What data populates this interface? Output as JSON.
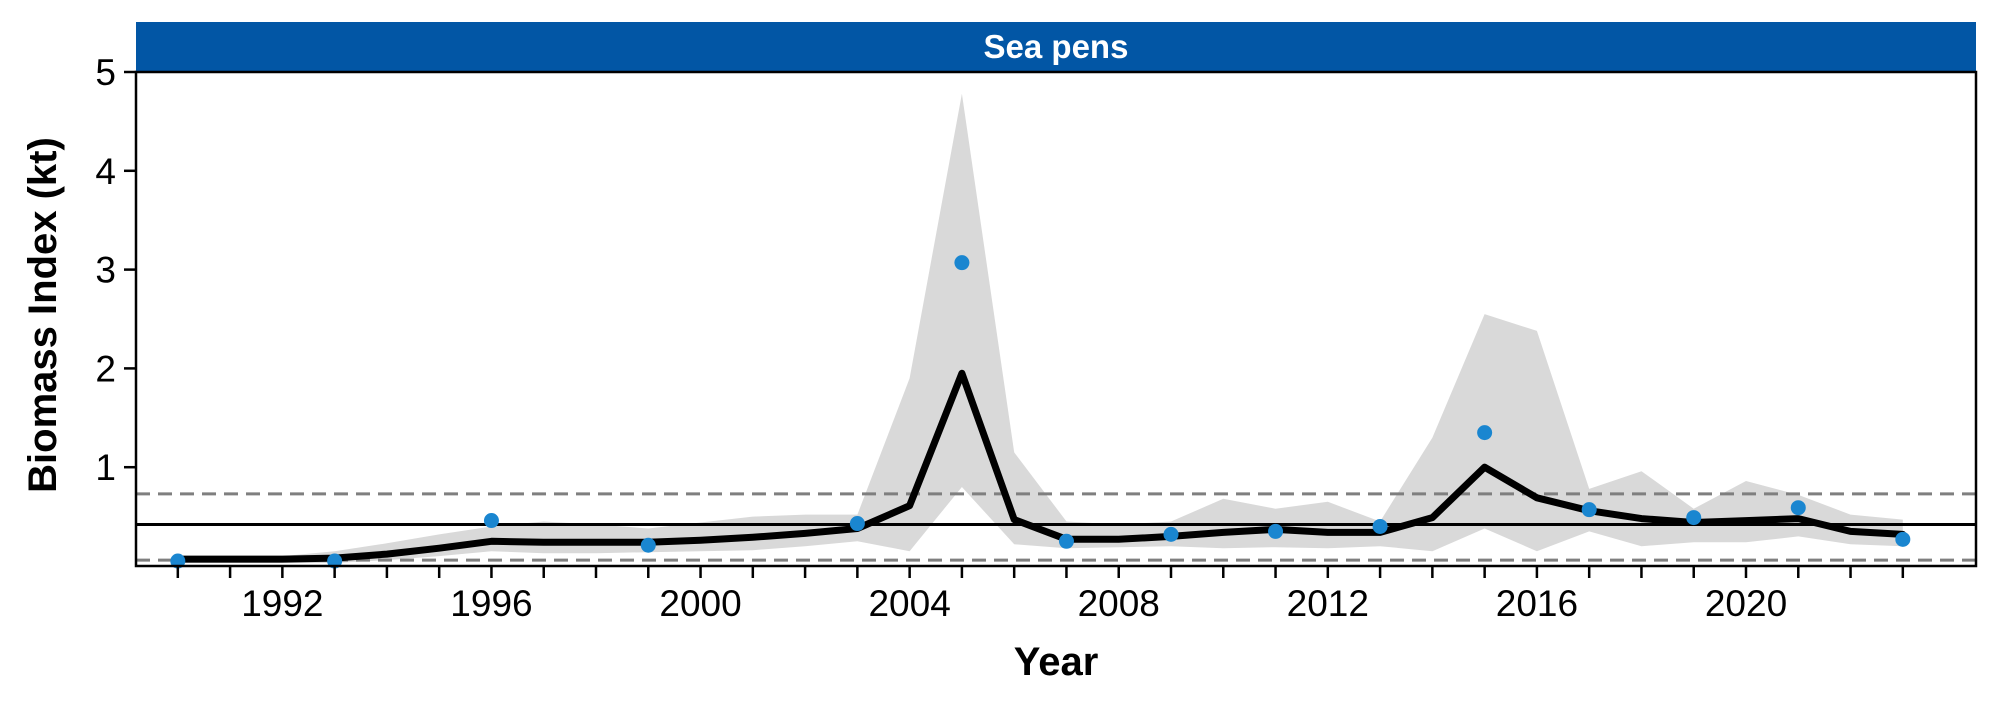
{
  "chart_data": {
    "type": "line",
    "panel_title": "Sea pens",
    "xlabel": "Year",
    "ylabel": "Biomass Index (kt)",
    "xlim": [
      1989.2,
      2024.4
    ],
    "ylim": [
      0,
      5
    ],
    "x_ticks": [
      1992,
      1996,
      2000,
      2004,
      2008,
      2012,
      2016,
      2020
    ],
    "y_ticks": [
      1,
      2,
      3,
      4,
      5
    ],
    "reference_lines": {
      "median": 0.42,
      "upper_dashed": 0.73,
      "lower_dashed": 0.06
    },
    "series": [
      {
        "kind": "smoothed_index",
        "x": [
          1990,
          1991,
          1992,
          1993,
          1994,
          1995,
          1996,
          1997,
          1998,
          1999,
          2000,
          2001,
          2002,
          2003,
          2004,
          2005,
          2006,
          2007,
          2008,
          2009,
          2010,
          2011,
          2012,
          2013,
          2014,
          2015,
          2016,
          2017,
          2018,
          2019,
          2020,
          2021,
          2022,
          2023
        ],
        "y": [
          0.07,
          0.07,
          0.07,
          0.08,
          0.12,
          0.18,
          0.25,
          0.24,
          0.24,
          0.24,
          0.26,
          0.29,
          0.33,
          0.38,
          0.61,
          1.95,
          0.47,
          0.27,
          0.27,
          0.3,
          0.34,
          0.37,
          0.34,
          0.34,
          0.49,
          1.0,
          0.69,
          0.56,
          0.48,
          0.44,
          0.46,
          0.48,
          0.35,
          0.32
        ]
      },
      {
        "kind": "confidence_band",
        "x": [
          1990,
          1991,
          1992,
          1993,
          1994,
          1995,
          1996,
          1997,
          1998,
          1999,
          2000,
          2001,
          2002,
          2003,
          2004,
          2005,
          2006,
          2007,
          2008,
          2009,
          2010,
          2011,
          2012,
          2013,
          2014,
          2015,
          2016,
          2017,
          2018,
          2019,
          2020,
          2021,
          2022,
          2023
        ],
        "lower": [
          0.03,
          0.03,
          0.03,
          0.03,
          0.06,
          0.1,
          0.15,
          0.13,
          0.13,
          0.14,
          0.15,
          0.16,
          0.2,
          0.25,
          0.15,
          0.8,
          0.22,
          0.18,
          0.19,
          0.2,
          0.18,
          0.19,
          0.18,
          0.2,
          0.15,
          0.38,
          0.15,
          0.35,
          0.2,
          0.24,
          0.24,
          0.3,
          0.22,
          0.2
        ],
        "upper": [
          0.1,
          0.1,
          0.1,
          0.15,
          0.23,
          0.32,
          0.4,
          0.45,
          0.42,
          0.38,
          0.44,
          0.5,
          0.52,
          0.52,
          1.9,
          4.78,
          1.15,
          0.45,
          0.42,
          0.45,
          0.68,
          0.58,
          0.65,
          0.45,
          1.3,
          2.55,
          2.38,
          0.78,
          0.96,
          0.58,
          0.86,
          0.72,
          0.52,
          0.47
        ]
      },
      {
        "kind": "survey_points",
        "x": [
          1990,
          1993,
          1996,
          1999,
          2003,
          2005,
          2007,
          2009,
          2011,
          2013,
          2015,
          2017,
          2019,
          2021,
          2023
        ],
        "y": [
          0.05,
          0.05,
          0.46,
          0.21,
          0.43,
          3.07,
          0.25,
          0.32,
          0.35,
          0.4,
          1.35,
          0.57,
          0.49,
          0.59,
          0.27
        ]
      }
    ],
    "colors": {
      "strip": "#0256A5",
      "points": "#1A86D0",
      "band": "#D9D9D9",
      "line": "#000000",
      "dashed": "#7F7F7F"
    }
  }
}
